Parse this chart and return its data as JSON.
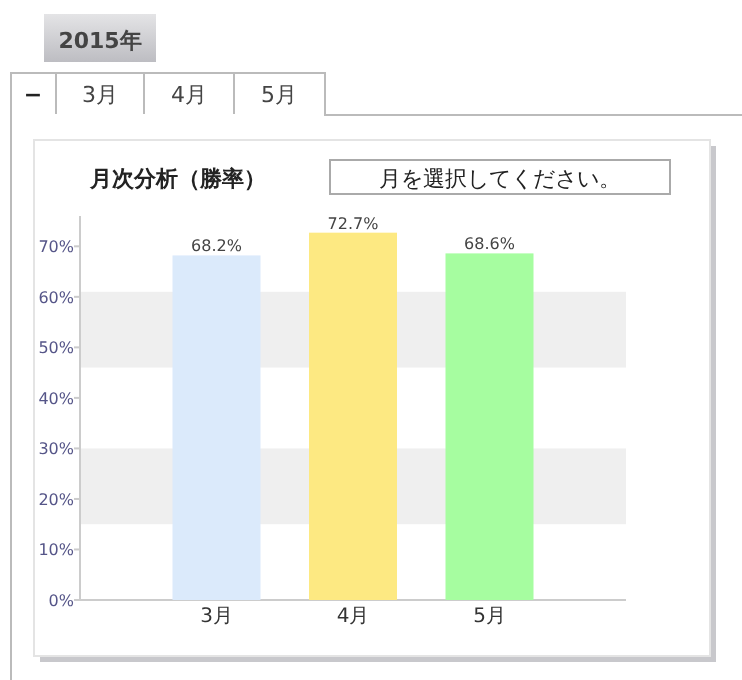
{
  "chart_data": {
    "type": "bar",
    "title": "月次分析（勝率）",
    "categories": [
      "3月",
      "4月",
      "5月"
    ],
    "values": [
      68.2,
      72.7,
      68.6
    ],
    "colors": [
      "#dbeafb",
      "#fde982",
      "#a6fda0"
    ],
    "value_labels": [
      "68.2%",
      "72.7%",
      "68.6%"
    ],
    "ylim": [
      0,
      76
    ],
    "yticks": [
      {
        "value": 0,
        "label": "0%"
      },
      {
        "value": 10,
        "label": "10%"
      },
      {
        "value": 20,
        "label": "20%"
      },
      {
        "value": 30,
        "label": "30%"
      },
      {
        "value": 40,
        "label": "40%"
      },
      {
        "value": 50,
        "label": "50%"
      },
      {
        "value": 60,
        "label": "60%"
      },
      {
        "value": 70,
        "label": "70%"
      }
    ],
    "bands": [
      {
        "axis": "y",
        "from": 15,
        "to": 30,
        "color": "#efefef"
      },
      {
        "axis": "y",
        "from": 46,
        "to": 61,
        "color": "#efefef"
      }
    ],
    "annotations": [
      "2015年",
      "−",
      "3月",
      "4月",
      "5月",
      "月を選択してください。"
    ]
  }
}
